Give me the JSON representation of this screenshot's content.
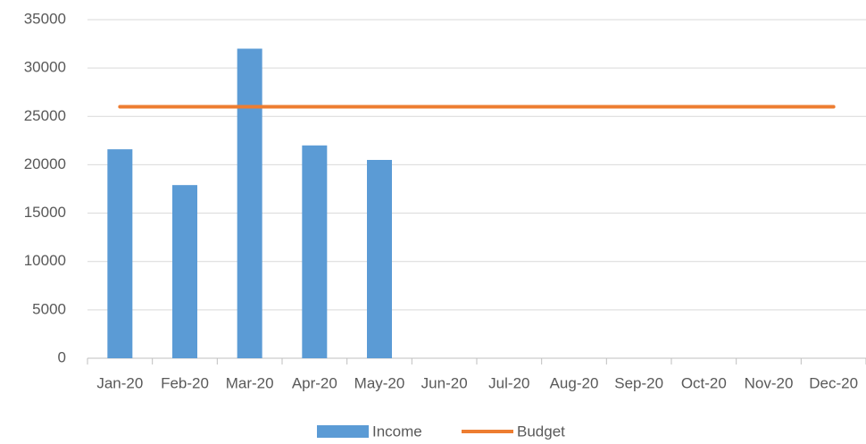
{
  "chart_data": {
    "type": "bar",
    "categories": [
      "Jan-20",
      "Feb-20",
      "Mar-20",
      "Apr-20",
      "May-20",
      "Jun-20",
      "Jul-20",
      "Aug-20",
      "Sep-20",
      "Oct-20",
      "Nov-20",
      "Dec-20"
    ],
    "series": [
      {
        "name": "Income",
        "type": "bar",
        "color": "#5b9bd5",
        "values": [
          21600,
          17900,
          32000,
          22000,
          20500,
          null,
          null,
          null,
          null,
          null,
          null,
          null
        ]
      },
      {
        "name": "Budget",
        "type": "line",
        "color": "#ed7d31",
        "values": [
          26000,
          26000,
          26000,
          26000,
          26000,
          26000,
          26000,
          26000,
          26000,
          26000,
          26000,
          26000
        ]
      }
    ],
    "ylim": [
      0,
      35000
    ],
    "yticks": [
      0,
      5000,
      10000,
      15000,
      20000,
      25000,
      30000,
      35000
    ],
    "grid": true,
    "legend": "bottom"
  }
}
